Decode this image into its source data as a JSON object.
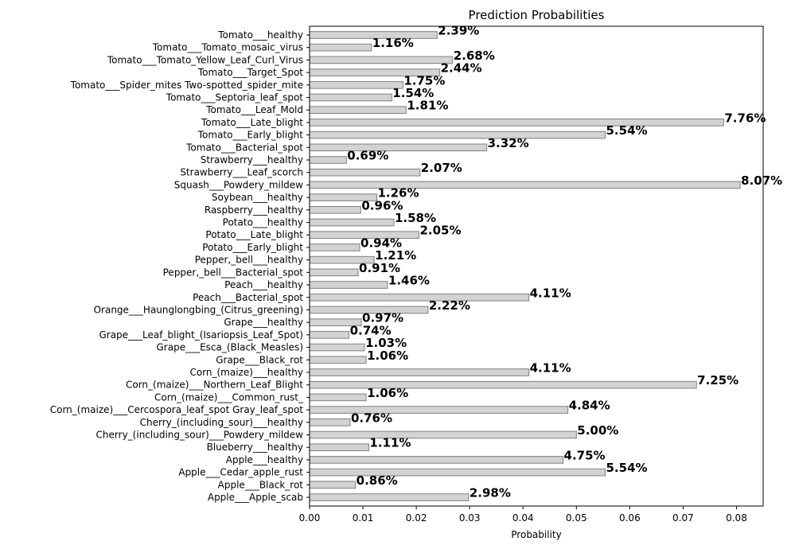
{
  "chart_data": {
    "type": "bar",
    "orientation": "horizontal",
    "title": "Prediction Probabilities",
    "xlabel": "Probability",
    "ylabel": "",
    "xlim": [
      0,
      0.085
    ],
    "xticks": [
      "0.00",
      "0.01",
      "0.02",
      "0.03",
      "0.04",
      "0.05",
      "0.06",
      "0.07",
      "0.08"
    ],
    "grid": false,
    "bar_color": "#d3d3d3",
    "bar_edge_color": "#808080",
    "categories": [
      "Apple___Apple_scab",
      "Apple___Black_rot",
      "Apple___Cedar_apple_rust",
      "Apple___healthy",
      "Blueberry___healthy",
      "Cherry_(including_sour)___Powdery_mildew",
      "Cherry_(including_sour)___healthy",
      "Corn_(maize)___Cercospora_leaf_spot Gray_leaf_spot",
      "Corn_(maize)___Common_rust_",
      "Corn_(maize)___Northern_Leaf_Blight",
      "Corn_(maize)___healthy",
      "Grape___Black_rot",
      "Grape___Esca_(Black_Measles)",
      "Grape___Leaf_blight_(Isariopsis_Leaf_Spot)",
      "Grape___healthy",
      "Orange___Haunglongbing_(Citrus_greening)",
      "Peach___Bacterial_spot",
      "Peach___healthy",
      "Pepper,_bell___Bacterial_spot",
      "Pepper,_bell___healthy",
      "Potato___Early_blight",
      "Potato___Late_blight",
      "Potato___healthy",
      "Raspberry___healthy",
      "Soybean___healthy",
      "Squash___Powdery_mildew",
      "Strawberry___Leaf_scorch",
      "Strawberry___healthy",
      "Tomato___Bacterial_spot",
      "Tomato___Early_blight",
      "Tomato___Late_blight",
      "Tomato___Leaf_Mold",
      "Tomato___Septoria_leaf_spot",
      "Tomato___Spider_mites Two-spotted_spider_mite",
      "Tomato___Target_Spot",
      "Tomato___Tomato_Yellow_Leaf_Curl_Virus",
      "Tomato___Tomato_mosaic_virus",
      "Tomato___healthy"
    ],
    "values": [
      0.0298,
      0.0086,
      0.0554,
      0.0475,
      0.0111,
      0.05,
      0.0076,
      0.0484,
      0.0106,
      0.0725,
      0.0411,
      0.0106,
      0.0103,
      0.0074,
      0.0097,
      0.0222,
      0.0411,
      0.0146,
      0.0091,
      0.0121,
      0.0094,
      0.0205,
      0.0158,
      0.0096,
      0.0126,
      0.0807,
      0.0207,
      0.0069,
      0.0332,
      0.0554,
      0.0776,
      0.0181,
      0.0154,
      0.0175,
      0.0244,
      0.0268,
      0.0116,
      0.0239
    ],
    "labels": [
      "2.98%",
      "0.86%",
      "5.54%",
      "4.75%",
      "1.11%",
      "5.00%",
      "0.76%",
      "4.84%",
      "1.06%",
      "7.25%",
      "4.11%",
      "1.06%",
      "1.03%",
      "0.74%",
      "0.97%",
      "2.22%",
      "4.11%",
      "1.46%",
      "0.91%",
      "1.21%",
      "0.94%",
      "2.05%",
      "1.58%",
      "0.96%",
      "1.26%",
      "8.07%",
      "2.07%",
      "0.69%",
      "3.32%",
      "5.54%",
      "7.76%",
      "1.81%",
      "1.54%",
      "1.75%",
      "2.44%",
      "2.68%",
      "1.16%",
      "2.39%"
    ]
  }
}
